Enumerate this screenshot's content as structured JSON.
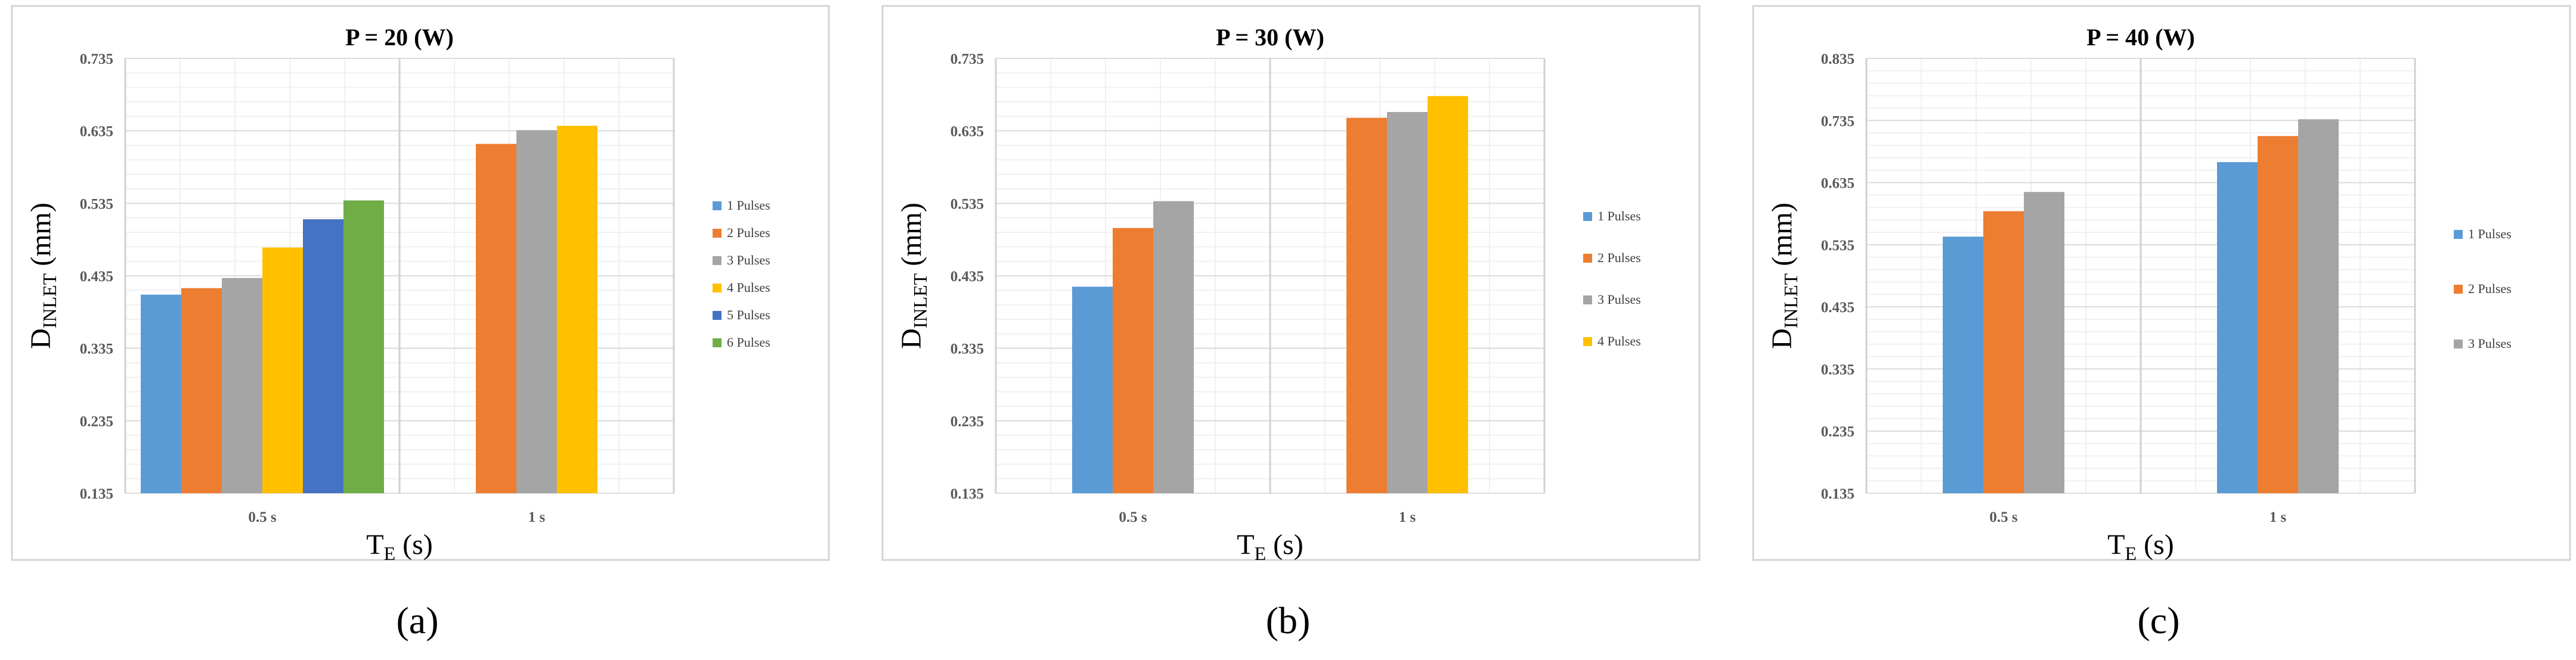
{
  "colors": {
    "1 Pulses": "#5b9bd5",
    "2 Pulses": "#ed7d31",
    "3 Pulses": "#a5a5a5",
    "4 Pulses": "#ffc000",
    "5 Pulses": "#4472c4",
    "6 Pulses": "#70ad47"
  },
  "chart_data": [
    {
      "type": "bar",
      "label": "(a)",
      "title": "P = 20 (W)",
      "xlabel": "T_E (s)",
      "ylabel": "D_INLET (mm)",
      "categories": [
        "0.5 s",
        "1 s"
      ],
      "ylim": [
        0.135,
        0.735
      ],
      "yticks": [
        "0.135",
        "0.235",
        "0.335",
        "0.435",
        "0.535",
        "0.635",
        "0.735"
      ],
      "legend_position": "right",
      "series": [
        {
          "name": "1 Pulses",
          "values": [
            0.409,
            null
          ]
        },
        {
          "name": "2 Pulses",
          "values": [
            0.418,
            0.617
          ]
        },
        {
          "name": "3 Pulses",
          "values": [
            0.432,
            0.636
          ]
        },
        {
          "name": "4 Pulses",
          "values": [
            0.474,
            0.642
          ]
        },
        {
          "name": "5 Pulses",
          "values": [
            0.513,
            null
          ]
        },
        {
          "name": "6 Pulses",
          "values": [
            0.539,
            null
          ]
        }
      ]
    },
    {
      "type": "bar",
      "label": "(b)",
      "title": "P = 30 (W)",
      "xlabel": "T_E (s)",
      "ylabel": "D_INLET (mm)",
      "categories": [
        "0.5 s",
        "1 s"
      ],
      "ylim": [
        0.135,
        0.735
      ],
      "yticks": [
        "0.135",
        "0.235",
        "0.335",
        "0.435",
        "0.535",
        "0.635",
        "0.735"
      ],
      "legend_position": "right",
      "series": [
        {
          "name": "1 Pulses",
          "values": [
            0.42,
            null
          ]
        },
        {
          "name": "2 Pulses",
          "values": [
            0.501,
            0.653
          ]
        },
        {
          "name": "3 Pulses",
          "values": [
            0.538,
            0.661
          ]
        },
        {
          "name": "4 Pulses",
          "values": [
            null,
            0.683
          ]
        }
      ]
    },
    {
      "type": "bar",
      "label": "(c)",
      "title": "P = 40 (W)",
      "xlabel": "T_E (s)",
      "ylabel": "D_INLET (mm)",
      "categories": [
        "0.5 s",
        "1 s"
      ],
      "ylim": [
        0.135,
        0.835
      ],
      "yticks": [
        "0.135",
        "0.235",
        "0.335",
        "0.435",
        "0.535",
        "0.635",
        "0.735",
        "0.835"
      ],
      "legend_position": "right",
      "series": [
        {
          "name": "1 Pulses",
          "values": [
            0.548,
            0.668
          ]
        },
        {
          "name": "2 Pulses",
          "values": [
            0.589,
            0.71
          ]
        },
        {
          "name": "3 Pulses",
          "values": [
            0.62,
            0.737
          ]
        }
      ]
    }
  ]
}
